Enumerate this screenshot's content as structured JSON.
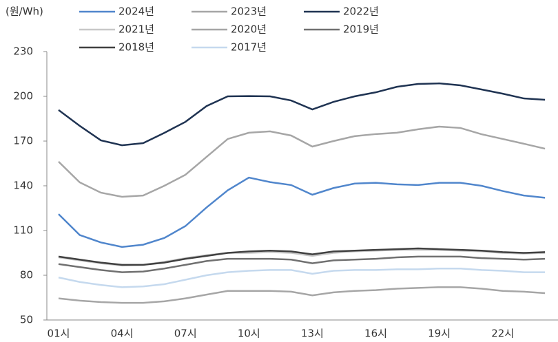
{
  "chart_data": {
    "type": "line",
    "y_label": "(원/Wh)",
    "categories": [
      "01시",
      null,
      null,
      "04시",
      null,
      null,
      "07시",
      null,
      null,
      "10시",
      null,
      null,
      "13시",
      null,
      null,
      "16시",
      null,
      null,
      "19시",
      null,
      null,
      "22시",
      null,
      null
    ],
    "ylim": [
      50,
      230
    ],
    "yticks": [
      50,
      80,
      110,
      140,
      170,
      200,
      230
    ],
    "series": [
      {
        "name": "2024년",
        "color": "#5086cc",
        "values": [
          121,
          107,
          102,
          99,
          100.5,
          105,
          113,
          125.5,
          137,
          145.5,
          142.5,
          140.5,
          134,
          138.5,
          141.5,
          142,
          141,
          140.5,
          142,
          142,
          140,
          136.5,
          133.5,
          132
        ]
      },
      {
        "name": "2023년",
        "color": "#a6a6a6",
        "values": [
          156.2,
          142.3,
          135.4,
          132.6,
          133.5,
          140,
          147.4,
          159.4,
          171.4,
          175.6,
          176.5,
          173.7,
          166.3,
          170,
          173.3,
          174.7,
          175.6,
          177.9,
          179.7,
          178.8,
          174.6,
          171.4,
          168.2,
          164.9
        ]
      },
      {
        "name": "2022년",
        "color": "#1f3352",
        "values": [
          190.8,
          180.2,
          170.5,
          167.2,
          168.6,
          175.5,
          182.9,
          193.5,
          200,
          200.2,
          200,
          197.2,
          191.2,
          196.3,
          200,
          202.7,
          206.4,
          208.3,
          208.7,
          207.4,
          204.6,
          201.8,
          198.6,
          197.7
        ]
      },
      {
        "name": "2021년",
        "color": "#c8c8c8",
        "values": [
          92,
          90,
          88,
          86.5,
          87,
          89,
          91.5,
          93.5,
          95,
          95,
          95.5,
          95,
          93,
          95,
          96,
          96.5,
          97,
          97,
          97,
          96.5,
          96,
          95,
          94.5,
          95
        ]
      },
      {
        "name": "2020년",
        "color": "#a6a6a6",
        "values": [
          64.5,
          63,
          62,
          61.5,
          61.5,
          62.5,
          64.5,
          67,
          69.5,
          69.5,
          69.5,
          69,
          66.5,
          68.5,
          69.5,
          70,
          71,
          71.5,
          72,
          72,
          71,
          69.5,
          69,
          68
        ]
      },
      {
        "name": "2019년",
        "color": "#707070",
        "values": [
          87.5,
          85.5,
          83.5,
          82,
          82.5,
          84.5,
          87,
          89.5,
          91,
          91,
          91,
          90.5,
          88,
          90,
          90.5,
          91,
          92,
          92.5,
          92.5,
          92.5,
          91.5,
          91,
          90.5,
          91
        ]
      },
      {
        "name": "2018년",
        "color": "#404040",
        "values": [
          92.5,
          90.5,
          88.5,
          87,
          87,
          88.5,
          91,
          93,
          95,
          96,
          96.5,
          96,
          94,
          96,
          96.5,
          97,
          97.5,
          98,
          97.5,
          97,
          96.5,
          95.5,
          95,
          95.5
        ]
      },
      {
        "name": "2017년",
        "color": "#c5d9ee",
        "values": [
          78.5,
          75.5,
          73.5,
          72,
          72.5,
          74,
          77,
          80,
          82,
          83,
          83.5,
          83.5,
          81,
          83,
          83.5,
          83.5,
          84,
          84,
          84.5,
          84.5,
          83.5,
          83,
          82,
          82
        ]
      }
    ]
  }
}
